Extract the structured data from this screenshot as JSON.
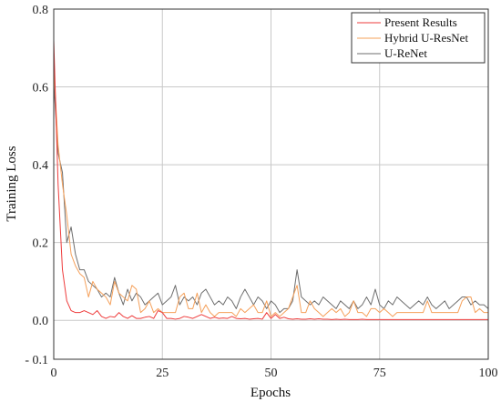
{
  "chart_data": {
    "type": "line",
    "xlabel": "Epochs",
    "ylabel": "Training Loss",
    "xlim": [
      0,
      100
    ],
    "ylim": [
      -0.1,
      0.8
    ],
    "xticks": [
      "0",
      "25",
      "50",
      "75",
      "100"
    ],
    "yticks": [
      "- 0.1",
      "0.0",
      "0.2",
      "0.4",
      "0.6",
      "0.8"
    ],
    "ytick_values": [
      -0.1,
      0.0,
      0.2,
      0.4,
      0.6,
      0.8
    ],
    "xtick_values": [
      0,
      25,
      50,
      75,
      100
    ],
    "grid": true,
    "legend_position": "top-right",
    "series": [
      {
        "name": "Present Results",
        "color": "#ee3b3b",
        "x": [
          0,
          1,
          2,
          3,
          4,
          5,
          6,
          7,
          8,
          9,
          10,
          11,
          12,
          13,
          14,
          15,
          16,
          17,
          18,
          19,
          20,
          21,
          22,
          23,
          24,
          25,
          26,
          27,
          28,
          29,
          30,
          31,
          32,
          33,
          34,
          35,
          36,
          37,
          38,
          39,
          40,
          41,
          42,
          43,
          44,
          45,
          46,
          47,
          48,
          49,
          50,
          51,
          52,
          53,
          54,
          55,
          56,
          57,
          58,
          59,
          60,
          61,
          62,
          63,
          64,
          65,
          66,
          67,
          68,
          69,
          70,
          71,
          72,
          73,
          74,
          75,
          76,
          77,
          78,
          79,
          80,
          81,
          82,
          83,
          84,
          85,
          86,
          87,
          88,
          89,
          90,
          91,
          92,
          93,
          94,
          95,
          96,
          97,
          98,
          99,
          100
        ],
        "values": [
          0.72,
          0.35,
          0.13,
          0.05,
          0.025,
          0.02,
          0.02,
          0.025,
          0.02,
          0.015,
          0.025,
          0.01,
          0.005,
          0.01,
          0.008,
          0.02,
          0.01,
          0.005,
          0.012,
          0.005,
          0.005,
          0.008,
          0.01,
          0.005,
          0.025,
          0.02,
          0.005,
          0.005,
          0.003,
          0.005,
          0.01,
          0.008,
          0.005,
          0.01,
          0.015,
          0.01,
          0.005,
          0.008,
          0.005,
          0.006,
          0.005,
          0.01,
          0.005,
          0.004,
          0.005,
          0.003,
          0.004,
          0.005,
          0.003,
          0.02,
          0.005,
          0.015,
          0.005,
          0.008,
          0.004,
          0.003,
          0.004,
          0.003,
          0.003,
          0.004,
          0.003,
          0.004,
          0.003,
          0.003,
          0.002,
          0.003,
          0.002,
          0.003,
          0.002,
          0.002,
          0.002,
          0.003,
          0.002,
          0.002,
          0.002,
          0.002,
          0.002,
          0.002,
          0.002,
          0.002,
          0.002,
          0.002,
          0.002,
          0.002,
          0.002,
          0.002,
          0.002,
          0.002,
          0.002,
          0.002,
          0.002,
          0.002,
          0.002,
          0.002,
          0.002,
          0.002,
          0.002,
          0.002,
          0.002,
          0.002,
          0.002
        ]
      },
      {
        "name": "Hybrid U-ResNet",
        "color": "#f5a05a",
        "x": [
          0,
          1,
          2,
          3,
          4,
          5,
          6,
          7,
          8,
          9,
          10,
          11,
          12,
          13,
          14,
          15,
          16,
          17,
          18,
          19,
          20,
          21,
          22,
          23,
          24,
          25,
          26,
          27,
          28,
          29,
          30,
          31,
          32,
          33,
          34,
          35,
          36,
          37,
          38,
          39,
          40,
          41,
          42,
          43,
          44,
          45,
          46,
          47,
          48,
          49,
          50,
          51,
          52,
          53,
          54,
          55,
          56,
          57,
          58,
          59,
          60,
          61,
          62,
          63,
          64,
          65,
          66,
          67,
          68,
          69,
          70,
          71,
          72,
          73,
          74,
          75,
          76,
          77,
          78,
          79,
          80,
          81,
          82,
          83,
          84,
          85,
          86,
          87,
          88,
          89,
          90,
          91,
          92,
          93,
          94,
          95,
          96,
          97,
          98,
          99,
          100
        ],
        "values": [
          0.65,
          0.45,
          0.35,
          0.27,
          0.17,
          0.14,
          0.12,
          0.11,
          0.06,
          0.1,
          0.08,
          0.07,
          0.06,
          0.04,
          0.1,
          0.07,
          0.06,
          0.05,
          0.09,
          0.08,
          0.02,
          0.03,
          0.05,
          0.02,
          0.03,
          0.02,
          0.02,
          0.02,
          0.02,
          0.06,
          0.07,
          0.03,
          0.03,
          0.07,
          0.02,
          0.04,
          0.02,
          0.01,
          0.02,
          0.02,
          0.02,
          0.02,
          0.01,
          0.03,
          0.02,
          0.03,
          0.04,
          0.02,
          0.02,
          0.05,
          0.01,
          0.02,
          0.01,
          0.02,
          0.03,
          0.06,
          0.09,
          0.02,
          0.02,
          0.05,
          0.03,
          0.02,
          0.01,
          0.02,
          0.03,
          0.02,
          0.03,
          0.01,
          0.02,
          0.05,
          0.02,
          0.02,
          0.01,
          0.03,
          0.03,
          0.02,
          0.03,
          0.02,
          0.01,
          0.02,
          0.02,
          0.02,
          0.02,
          0.02,
          0.02,
          0.02,
          0.05,
          0.02,
          0.02,
          0.02,
          0.02,
          0.02,
          0.02,
          0.02,
          0.05,
          0.06,
          0.06,
          0.02,
          0.03,
          0.02,
          0.02
        ]
      },
      {
        "name": "U-ReNet",
        "color": "#6e6e6e",
        "x": [
          0,
          1,
          2,
          3,
          4,
          5,
          6,
          7,
          8,
          9,
          10,
          11,
          12,
          13,
          14,
          15,
          16,
          17,
          18,
          19,
          20,
          21,
          22,
          23,
          24,
          25,
          26,
          27,
          28,
          29,
          30,
          31,
          32,
          33,
          34,
          35,
          36,
          37,
          38,
          39,
          40,
          41,
          42,
          43,
          44,
          45,
          46,
          47,
          48,
          49,
          50,
          51,
          52,
          53,
          54,
          55,
          56,
          57,
          58,
          59,
          60,
          61,
          62,
          63,
          64,
          65,
          66,
          67,
          68,
          69,
          70,
          71,
          72,
          73,
          74,
          75,
          76,
          77,
          78,
          79,
          80,
          81,
          82,
          83,
          84,
          85,
          86,
          87,
          88,
          89,
          90,
          91,
          92,
          93,
          94,
          95,
          96,
          97,
          98,
          99,
          100
        ],
        "values": [
          0.61,
          0.43,
          0.38,
          0.2,
          0.24,
          0.17,
          0.13,
          0.13,
          0.1,
          0.09,
          0.08,
          0.06,
          0.07,
          0.06,
          0.11,
          0.07,
          0.04,
          0.08,
          0.05,
          0.07,
          0.06,
          0.04,
          0.05,
          0.06,
          0.07,
          0.04,
          0.05,
          0.06,
          0.09,
          0.04,
          0.06,
          0.05,
          0.06,
          0.04,
          0.07,
          0.08,
          0.06,
          0.04,
          0.05,
          0.04,
          0.06,
          0.05,
          0.03,
          0.06,
          0.08,
          0.06,
          0.04,
          0.06,
          0.05,
          0.03,
          0.05,
          0.04,
          0.02,
          0.03,
          0.03,
          0.05,
          0.13,
          0.06,
          0.05,
          0.04,
          0.05,
          0.04,
          0.06,
          0.05,
          0.04,
          0.03,
          0.05,
          0.04,
          0.03,
          0.05,
          0.03,
          0.04,
          0.06,
          0.04,
          0.08,
          0.04,
          0.03,
          0.05,
          0.04,
          0.06,
          0.05,
          0.04,
          0.03,
          0.04,
          0.05,
          0.04,
          0.06,
          0.04,
          0.03,
          0.04,
          0.05,
          0.03,
          0.04,
          0.05,
          0.06,
          0.06,
          0.04,
          0.05,
          0.04,
          0.04,
          0.03
        ]
      }
    ]
  }
}
